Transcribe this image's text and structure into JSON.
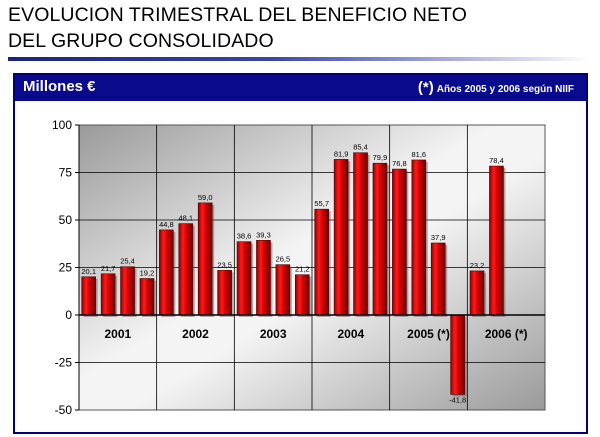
{
  "slide": {
    "title": "EVOLUCION TRIMESTRAL DEL BENEFICIO NETO\nDEL GRUPO CONSOLIDADO",
    "units": "Millones €",
    "note_mark": "(*)",
    "note_text": "Años 2005 y 2006 según NIIF"
  },
  "colors": {
    "header_bg": "#0a0a8c",
    "bar": "#d40000",
    "bar_dark": "#6a0000"
  },
  "chart_data": {
    "type": "bar",
    "title": "",
    "xlabel": "",
    "ylabel": "",
    "ylim": [
      -50,
      100
    ],
    "yticks": [
      100,
      75,
      50,
      25,
      0,
      -25,
      -50
    ],
    "grid": true,
    "groups": [
      {
        "label": "2001",
        "values": [
          20.1,
          21.7,
          25.4,
          19.2
        ],
        "labels": [
          "20,1",
          "21,7",
          "25,4",
          "19,2"
        ]
      },
      {
        "label": "2002",
        "values": [
          44.8,
          48.1,
          59.0,
          23.5
        ],
        "labels": [
          "44,8",
          "48,1",
          "59,0",
          "23,5"
        ]
      },
      {
        "label": "2003",
        "values": [
          38.6,
          39.3,
          26.5,
          21.2
        ],
        "labels": [
          "38,6",
          "39,3",
          "26,5",
          "21,2"
        ]
      },
      {
        "label": "2004",
        "values": [
          55.7,
          81.9,
          85.4,
          79.9
        ],
        "labels": [
          "55,7",
          "81,9",
          "85,4",
          "79,9"
        ]
      },
      {
        "label": "2005 (*)",
        "values": [
          76.8,
          81.6,
          37.9,
          -41.8
        ],
        "labels": [
          "76,8",
          "81,6",
          "37,9",
          "-41,8"
        ]
      },
      {
        "label": "2006 (*)",
        "values": [
          23.2,
          78.4
        ],
        "labels": [
          "23,2",
          "78,4"
        ]
      }
    ]
  }
}
